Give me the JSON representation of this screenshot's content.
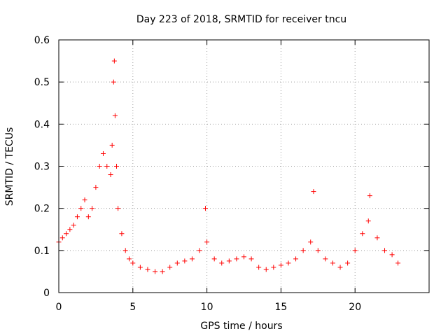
{
  "chart_data": {
    "type": "scatter",
    "title": "Day 223 of 2018, SRMTID for receiver tncu",
    "xlabel": "GPS time / hours",
    "ylabel": "SRMTID / TECUs",
    "xlim": [
      0,
      25
    ],
    "ylim": [
      0,
      0.6
    ],
    "x_ticks": [
      0,
      5,
      10,
      15,
      20
    ],
    "y_ticks": [
      0,
      0.1,
      0.2,
      0.3,
      0.4,
      0.5,
      0.6
    ],
    "x_tick_labels": [
      "0",
      "5",
      "10",
      "15",
      "20"
    ],
    "y_tick_labels": [
      "0",
      "0.1",
      "0.2",
      "0.3",
      "0.4",
      "0.5",
      "0.6"
    ],
    "grid": true,
    "marker": "+",
    "series": [
      {
        "name": "SRMTID",
        "color": "#ff0000",
        "x": [
          0.0,
          0.25,
          0.5,
          0.75,
          1.0,
          1.25,
          1.5,
          1.75,
          2.0,
          2.25,
          2.5,
          2.75,
          3.0,
          3.25,
          3.5,
          3.6,
          3.7,
          3.75,
          3.8,
          3.9,
          4.0,
          4.25,
          4.5,
          4.75,
          5.0,
          5.5,
          6.0,
          6.5,
          7.0,
          7.5,
          8.0,
          8.5,
          9.0,
          9.5,
          9.9,
          10.0,
          10.5,
          11.0,
          11.5,
          12.0,
          12.5,
          13.0,
          13.5,
          14.0,
          14.5,
          15.0,
          15.5,
          16.0,
          16.5,
          17.0,
          17.2,
          17.5,
          18.0,
          18.5,
          19.0,
          19.5,
          20.0,
          20.5,
          20.9,
          21.0,
          21.5,
          22.0,
          22.5,
          22.9
        ],
        "y": [
          0.12,
          0.13,
          0.14,
          0.15,
          0.16,
          0.18,
          0.2,
          0.22,
          0.18,
          0.2,
          0.25,
          0.3,
          0.33,
          0.3,
          0.28,
          0.35,
          0.5,
          0.55,
          0.42,
          0.3,
          0.2,
          0.14,
          0.1,
          0.08,
          0.07,
          0.06,
          0.055,
          0.05,
          0.05,
          0.06,
          0.07,
          0.075,
          0.08,
          0.1,
          0.2,
          0.12,
          0.08,
          0.07,
          0.075,
          0.08,
          0.085,
          0.08,
          0.06,
          0.055,
          0.06,
          0.065,
          0.07,
          0.08,
          0.1,
          0.12,
          0.24,
          0.1,
          0.08,
          0.07,
          0.06,
          0.07,
          0.1,
          0.14,
          0.17,
          0.23,
          0.13,
          0.1,
          0.09,
          0.07
        ]
      }
    ]
  }
}
